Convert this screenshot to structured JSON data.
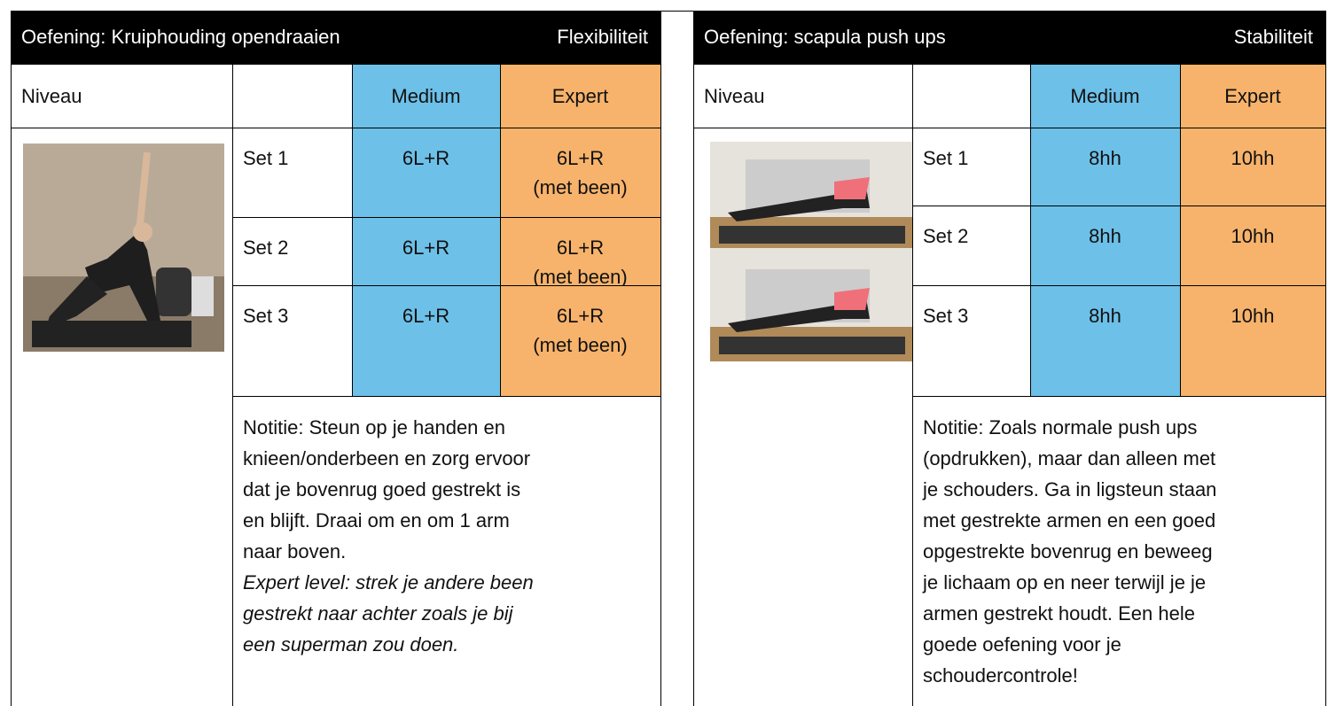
{
  "panels": [
    {
      "title": "Oefening: Kruiphouding opendraaien",
      "category": "Flexibiliteit",
      "level_label": "Niveau",
      "levels": [
        "Medium",
        "Expert"
      ],
      "sets": [
        {
          "label": "Set 1",
          "medium": "6L+R",
          "expert": "6L+R\n(met been)"
        },
        {
          "label": "Set 2",
          "medium": "6L+R",
          "expert": "6L+R\n(met been)"
        },
        {
          "label": "Set 3",
          "medium": "6L+R",
          "expert": "6L+R\n(met been)"
        }
      ],
      "note": [
        "Notitie: Steun op je handen en",
        "knieen/onderbeen en zorg ervoor",
        "dat je bovenrug goed gestrekt is",
        "en blijft. Draai om en om 1 arm",
        "naar boven."
      ],
      "note_italic": [
        "Expert level: strek je andere been",
        "gestrekt naar achter zoals je bij",
        "een superman zou doen."
      ]
    },
    {
      "title": "Oefening: scapula push ups",
      "category": "Stabiliteit",
      "level_label": "Niveau",
      "levels": [
        "Medium",
        "Expert"
      ],
      "sets": [
        {
          "label": "Set 1",
          "medium": "8hh",
          "expert": "10hh"
        },
        {
          "label": "Set 2",
          "medium": "8hh",
          "expert": "10hh"
        },
        {
          "label": "Set 3",
          "medium": "8hh",
          "expert": "10hh"
        }
      ],
      "note": [
        "Notitie: Zoals normale push ups",
        "(opdrukken), maar dan alleen met",
        "je schouders. Ga in ligsteun staan",
        "met gestrekte armen en een goed",
        "opgestrekte bovenrug en beweeg",
        "je lichaam op en neer terwijl je je",
        "armen gestrekt houdt. Een hele",
        "goede oefening voor je",
        "schoudercontrole!"
      ],
      "note_italic": []
    }
  ]
}
